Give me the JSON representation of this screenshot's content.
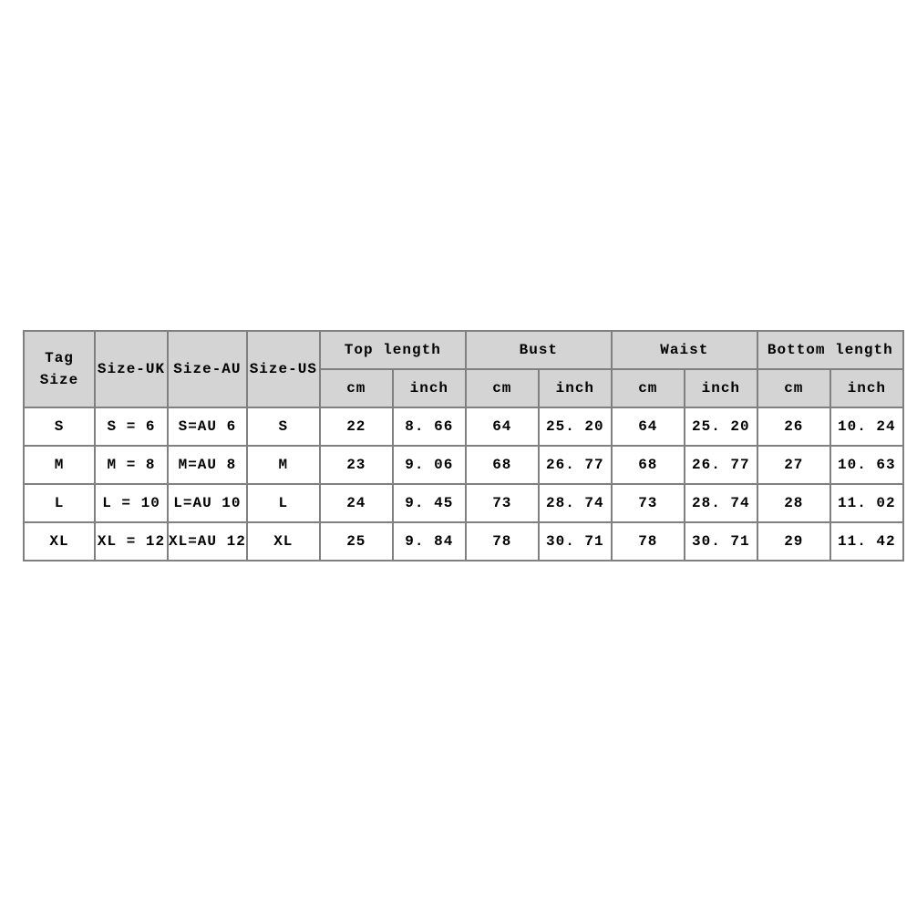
{
  "chart_data": {
    "type": "table",
    "header": {
      "rowspan_columns": [
        "Tag\nSize",
        "Size-UK",
        "Size-AU",
        "Size-US"
      ],
      "groups": [
        {
          "label": "Top length",
          "sub": [
            "cm",
            "inch"
          ]
        },
        {
          "label": "Bust",
          "sub": [
            "cm",
            "inch"
          ]
        },
        {
          "label": "Waist",
          "sub": [
            "cm",
            "inch"
          ]
        },
        {
          "label": "Bottom length",
          "sub": [
            "cm",
            "inch"
          ]
        }
      ]
    },
    "rows": [
      [
        "S",
        "S = 6",
        "S=AU 6",
        "S",
        "22",
        "8. 66",
        "64",
        "25. 20",
        "64",
        "25. 20",
        "26",
        "10. 24"
      ],
      [
        "M",
        "M = 8",
        "M=AU 8",
        "M",
        "23",
        "9. 06",
        "68",
        "26. 77",
        "68",
        "26. 77",
        "27",
        "10. 63"
      ],
      [
        "L",
        "L = 10",
        "L=AU 10",
        "L",
        "24",
        "9. 45",
        "73",
        "28. 74",
        "73",
        "28. 74",
        "28",
        "11. 02"
      ],
      [
        "XL",
        "XL = 12",
        "XL=AU 12",
        "XL",
        "25",
        "9. 84",
        "78",
        "30. 71",
        "78",
        "30. 71",
        "29",
        "11. 42"
      ]
    ],
    "style": {
      "header_bg": "#d4d4d4",
      "border_color": "#808080",
      "text_color": "#000000",
      "page_bg": "#ffffff"
    }
  }
}
